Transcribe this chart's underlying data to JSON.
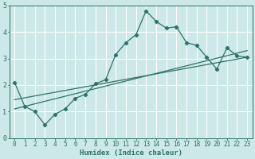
{
  "xlabel": "Humidex (Indice chaleur)",
  "xlim": [
    -0.5,
    23.5
  ],
  "ylim": [
    0,
    5
  ],
  "xticks": [
    0,
    1,
    2,
    3,
    4,
    5,
    6,
    7,
    8,
    9,
    10,
    11,
    12,
    13,
    14,
    15,
    16,
    17,
    18,
    19,
    20,
    21,
    22,
    23
  ],
  "yticks": [
    0,
    1,
    2,
    3,
    4,
    5
  ],
  "bg_color": "#cce8e8",
  "line_color": "#2d7368",
  "grid_color": "#ffffff",
  "line1_x": [
    0,
    1,
    2,
    3,
    4,
    5,
    6,
    7,
    8,
    9,
    10,
    11,
    12,
    13,
    14,
    15,
    16,
    17,
    18,
    19,
    20,
    21,
    22,
    23
  ],
  "line1_y": [
    2.1,
    1.2,
    1.0,
    0.5,
    0.9,
    1.1,
    1.5,
    1.65,
    2.05,
    2.2,
    3.15,
    3.6,
    3.9,
    4.8,
    4.4,
    4.15,
    4.2,
    3.6,
    3.5,
    3.05,
    2.6,
    3.4,
    3.1,
    3.05
  ],
  "line2_x": [
    0,
    23
  ],
  "line2_y": [
    1.1,
    3.3
  ],
  "line3_x": [
    0,
    23
  ],
  "line3_y": [
    1.45,
    3.05
  ],
  "fontname": "monospace",
  "xlabel_fontsize": 6.5,
  "tick_fontsize": 5.5
}
